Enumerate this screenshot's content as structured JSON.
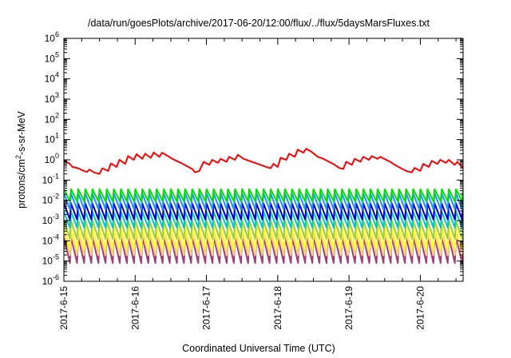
{
  "chart_data": {
    "type": "line",
    "title": "/data/run/goesPlots/archive/2017-06-20/12:00/flux/../flux/5daysMarsFluxes.txt",
    "xlabel": "Coordinated Universal Time (UTC)",
    "ylabel": {
      "before": "protons/cm",
      "sup": "2",
      "after": "-s-sr-MeV"
    },
    "yscale": "log",
    "ylim": [
      1e-06,
      1000000.0
    ],
    "xlim": [
      0,
      5.6
    ],
    "x_unit": "days since 2017-6-15 00:00 UTC",
    "x_ticks": [
      {
        "x": 0,
        "label": "2017-6-15"
      },
      {
        "x": 1,
        "label": "2017-6-16"
      },
      {
        "x": 2,
        "label": "2017-6-17"
      },
      {
        "x": 3,
        "label": "2017-6-18"
      },
      {
        "x": 4,
        "label": "2017-6-19"
      },
      {
        "x": 5,
        "label": "2017-6-20"
      }
    ],
    "y_ticks": [
      {
        "exp": -6,
        "base": "10",
        "sup": "-6"
      },
      {
        "exp": -5,
        "base": "10",
        "sup": "-5"
      },
      {
        "exp": -4,
        "base": "10",
        "sup": "-4"
      },
      {
        "exp": -3,
        "base": "10",
        "sup": "-3"
      },
      {
        "exp": -2,
        "base": "10",
        "sup": "-2"
      },
      {
        "exp": -1,
        "base": "10",
        "sup": "-1"
      },
      {
        "exp": 0,
        "base": "10",
        "sup": "0"
      },
      {
        "exp": 1,
        "base": "10",
        "sup": "1"
      },
      {
        "exp": 2,
        "base": "10",
        "sup": "2"
      },
      {
        "exp": 3,
        "base": "10",
        "sup": "3"
      },
      {
        "exp": 4,
        "base": "10",
        "sup": "4"
      },
      {
        "exp": 5,
        "base": "10",
        "sup": "5"
      },
      {
        "exp": 6,
        "base": "10",
        "sup": "6"
      }
    ],
    "grid": false,
    "legend": "none",
    "series": [
      {
        "color": "#ff0000",
        "sawtooth": false,
        "log10_points": [
          [
            0.0,
            -0.05
          ],
          [
            0.08,
            -0.18
          ],
          [
            0.12,
            -0.35
          ],
          [
            0.2,
            -0.42
          ],
          [
            0.28,
            -0.55
          ],
          [
            0.32,
            -0.6
          ],
          [
            0.36,
            -0.48
          ],
          [
            0.42,
            -0.62
          ],
          [
            0.5,
            -0.7
          ],
          [
            0.54,
            -0.42
          ],
          [
            0.62,
            -0.55
          ],
          [
            0.66,
            -0.18
          ],
          [
            0.74,
            -0.35
          ],
          [
            0.78,
            0.0
          ],
          [
            0.86,
            -0.2
          ],
          [
            0.9,
            0.18
          ],
          [
            0.98,
            0.0
          ],
          [
            1.02,
            0.28
          ],
          [
            1.1,
            0.05
          ],
          [
            1.14,
            0.3
          ],
          [
            1.22,
            0.1
          ],
          [
            1.26,
            0.36
          ],
          [
            1.34,
            0.15
          ],
          [
            1.38,
            0.35
          ],
          [
            1.46,
            0.18
          ],
          [
            1.52,
            0.05
          ],
          [
            1.58,
            -0.05
          ],
          [
            1.64,
            -0.15
          ],
          [
            1.72,
            -0.3
          ],
          [
            1.8,
            -0.45
          ],
          [
            1.84,
            -0.62
          ],
          [
            1.9,
            -0.55
          ],
          [
            1.96,
            -0.1
          ],
          [
            2.04,
            -0.25
          ],
          [
            2.08,
            0.0
          ],
          [
            2.16,
            -0.15
          ],
          [
            2.2,
            0.05
          ],
          [
            2.28,
            -0.1
          ],
          [
            2.32,
            0.15
          ],
          [
            2.4,
            0.0
          ],
          [
            2.44,
            0.25
          ],
          [
            2.52,
            0.05
          ],
          [
            2.6,
            -0.05
          ],
          [
            2.68,
            -0.15
          ],
          [
            2.76,
            -0.25
          ],
          [
            2.84,
            -0.35
          ],
          [
            2.9,
            -0.42
          ],
          [
            2.94,
            -0.2
          ],
          [
            3.0,
            -0.35
          ],
          [
            3.04,
            0.1
          ],
          [
            3.12,
            0.0
          ],
          [
            3.16,
            0.3
          ],
          [
            3.24,
            0.15
          ],
          [
            3.28,
            0.5
          ],
          [
            3.36,
            0.35
          ],
          [
            3.4,
            0.55
          ],
          [
            3.48,
            0.38
          ],
          [
            3.56,
            0.15
          ],
          [
            3.64,
            0.05
          ],
          [
            3.72,
            -0.1
          ],
          [
            3.8,
            -0.25
          ],
          [
            3.86,
            -0.4
          ],
          [
            3.92,
            -0.45
          ],
          [
            3.96,
            -0.1
          ],
          [
            4.04,
            -0.25
          ],
          [
            4.08,
            0.05
          ],
          [
            4.16,
            -0.1
          ],
          [
            4.2,
            0.15
          ],
          [
            4.28,
            0.0
          ],
          [
            4.32,
            0.18
          ],
          [
            4.4,
            0.05
          ],
          [
            4.44,
            0.15
          ],
          [
            4.52,
            0.0
          ],
          [
            4.58,
            -0.1
          ],
          [
            4.64,
            -0.25
          ],
          [
            4.72,
            -0.4
          ],
          [
            4.8,
            -0.55
          ],
          [
            4.88,
            -0.62
          ],
          [
            4.92,
            -0.4
          ],
          [
            5.0,
            -0.55
          ],
          [
            5.04,
            -0.2
          ],
          [
            5.12,
            -0.35
          ],
          [
            5.16,
            -0.05
          ],
          [
            5.24,
            -0.2
          ],
          [
            5.28,
            0.0
          ],
          [
            5.36,
            -0.15
          ],
          [
            5.4,
            0.0
          ],
          [
            5.48,
            -0.25
          ],
          [
            5.52,
            -0.1
          ],
          [
            5.6,
            -0.42
          ]
        ]
      },
      {
        "color": "#00e000",
        "sawtooth": true,
        "period": 0.1,
        "top": -1.45,
        "bottom": -2.05
      },
      {
        "color": "#1e90ff",
        "sawtooth": true,
        "period": 0.1,
        "top": -1.65,
        "bottom": -2.45
      },
      {
        "color": "#0000c8",
        "sawtooth": true,
        "period": 0.1,
        "top": -2.15,
        "bottom": -2.95
      },
      {
        "color": "#00c8c8",
        "sawtooth": true,
        "period": 0.1,
        "top": -2.55,
        "bottom": -3.35
      },
      {
        "color": "#9acd32",
        "sawtooth": true,
        "period": 0.1,
        "top": -3.0,
        "bottom": -3.9
      },
      {
        "color": "#ffff32",
        "sawtooth": true,
        "period": 0.1,
        "top": -3.3,
        "bottom": -4.4
      },
      {
        "color": "#ffd27a",
        "sawtooth": true,
        "period": 0.1,
        "top": -3.6,
        "bottom": -4.7
      },
      {
        "color": "#a03c78",
        "sawtooth": true,
        "period": 0.1,
        "top": -3.8,
        "bottom": -5.1
      }
    ]
  }
}
